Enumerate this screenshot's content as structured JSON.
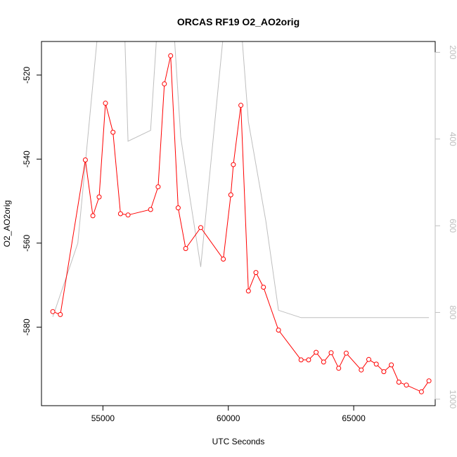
{
  "chart_data": {
    "type": "line",
    "title": "ORCAS RF19 O2_AO2orig",
    "xlabel": "UTC Seconds",
    "ylabel": "O2_AO2orig",
    "xlim": [
      52550,
      68250
    ],
    "ylim": [
      -598.7,
      -512
    ],
    "y2lim": [
      1015,
      175
    ],
    "x_ticks": [
      55000,
      60000,
      65000
    ],
    "x_tick_labels": [
      "55000",
      "60000",
      "65000"
    ],
    "y_ticks": [
      -580,
      -560,
      -540,
      -520
    ],
    "y_tick_labels": [
      "-580",
      "-560",
      "-540",
      "-520"
    ],
    "y2_ticks": [
      200,
      400,
      600,
      800,
      1000
    ],
    "y2_tick_labels": [
      "200",
      "400",
      "600",
      "800",
      "1000"
    ],
    "grid": false,
    "series": [
      {
        "color": "#ff0000",
        "style": "line-with-open-circles",
        "x": [
          53000,
          53300,
          54300,
          54600,
          54850,
          55100,
          55400,
          55700,
          56000,
          56900,
          57200,
          57450,
          57700,
          58000,
          58300,
          58900,
          59800,
          60100,
          60200,
          60500,
          60800,
          61100,
          61400,
          62000,
          62900,
          63200,
          63500,
          63800,
          64100,
          64400,
          64700,
          65300,
          65600,
          65900,
          66200,
          66500,
          66800,
          67100,
          67700,
          68000
        ],
        "y": [
          -576.3,
          -577,
          -540.2,
          -553.5,
          -549,
          -526.7,
          -533.6,
          -553,
          -553.3,
          -552,
          -546.6,
          -522.1,
          -515.4,
          -551.6,
          -561.3,
          -556.3,
          -563.8,
          -548.5,
          -541.3,
          -527.2,
          -571.4,
          -567,
          -570.5,
          -580.7,
          -587.8,
          -587.8,
          -586,
          -588.3,
          -586.1,
          -589.8,
          -586.2,
          -590.2,
          -587.7,
          -588.8,
          -590.6,
          -589,
          -593.1,
          -593.8,
          -595.4,
          -592.8
        ]
      },
      {
        "color": "#bebebe",
        "style": "line",
        "axis": "right",
        "x": [
          53000,
          54000,
          54850,
          55050,
          55850,
          56000,
          56900,
          57200,
          57450,
          57800,
          58100,
          58400,
          58900,
          59800,
          60100,
          60500,
          60800,
          61500,
          62000,
          62900,
          68000
        ],
        "y": [
          810,
          640,
          120,
          60,
          120,
          405,
          380,
          110,
          80,
          120,
          395,
          510,
          695,
          160,
          110,
          130,
          360,
          590,
          795,
          812,
          812
        ]
      }
    ]
  }
}
